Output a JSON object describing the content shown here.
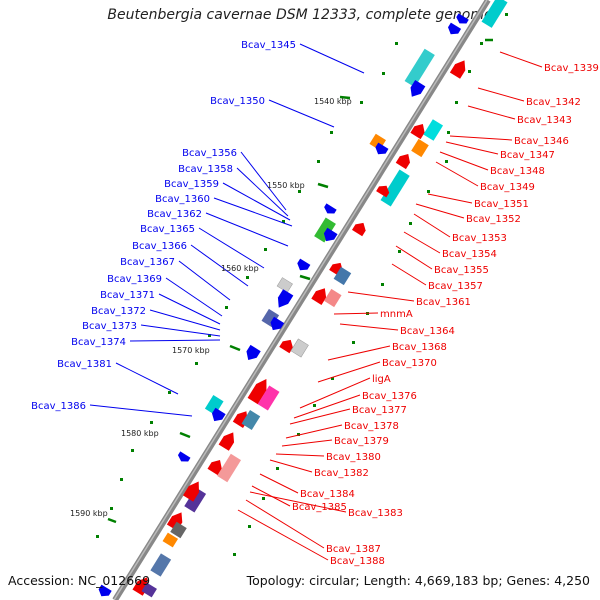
{
  "title": "Beutenbergia cavernae DSM 12333, complete genome",
  "footer": {
    "accession": "Accession: NC_012669",
    "topology": "Topology: circular; Length: 4,669,183 bp; Genes: 4,250"
  },
  "colors": {
    "backbone": "#888888",
    "top_strand": "#0000ee",
    "bottom_strand": "#ee0000",
    "tick": "#008000"
  },
  "ruler": [
    "1540 kbp",
    "1550 kbp",
    "1560 kbp",
    "1570 kbp",
    "1580 kbp",
    "1590 kbp"
  ],
  "top_labels": [
    "Bcav_1345",
    "Bcav_1350",
    "Bcav_1356",
    "Bcav_1358",
    "Bcav_1359",
    "Bcav_1360",
    "Bcav_1362",
    "Bcav_1365",
    "Bcav_1366",
    "Bcav_1367",
    "Bcav_1369",
    "Bcav_1371",
    "Bcav_1372",
    "Bcav_1373",
    "Bcav_1374",
    "Bcav_1381",
    "Bcav_1386"
  ],
  "bottom_labels": [
    "Bcav_1339",
    "Bcav_1342",
    "Bcav_1343",
    "Bcav_1346",
    "Bcav_1347",
    "Bcav_1348",
    "Bcav_1349",
    "Bcav_1351",
    "Bcav_1352",
    "Bcav_1353",
    "Bcav_1354",
    "Bcav_1355",
    "Bcav_1357",
    "Bcav_1361",
    "mnmA",
    "Bcav_1364",
    "Bcav_1368",
    "Bcav_1370",
    "ligA",
    "Bcav_1376",
    "Bcav_1377",
    "Bcav_1378",
    "Bcav_1379",
    "Bcav_1380",
    "Bcav_1382",
    "Bcav_1384",
    "Bcav_1385",
    "Bcav_1383",
    "Bcav_1387",
    "Bcav_1388"
  ]
}
